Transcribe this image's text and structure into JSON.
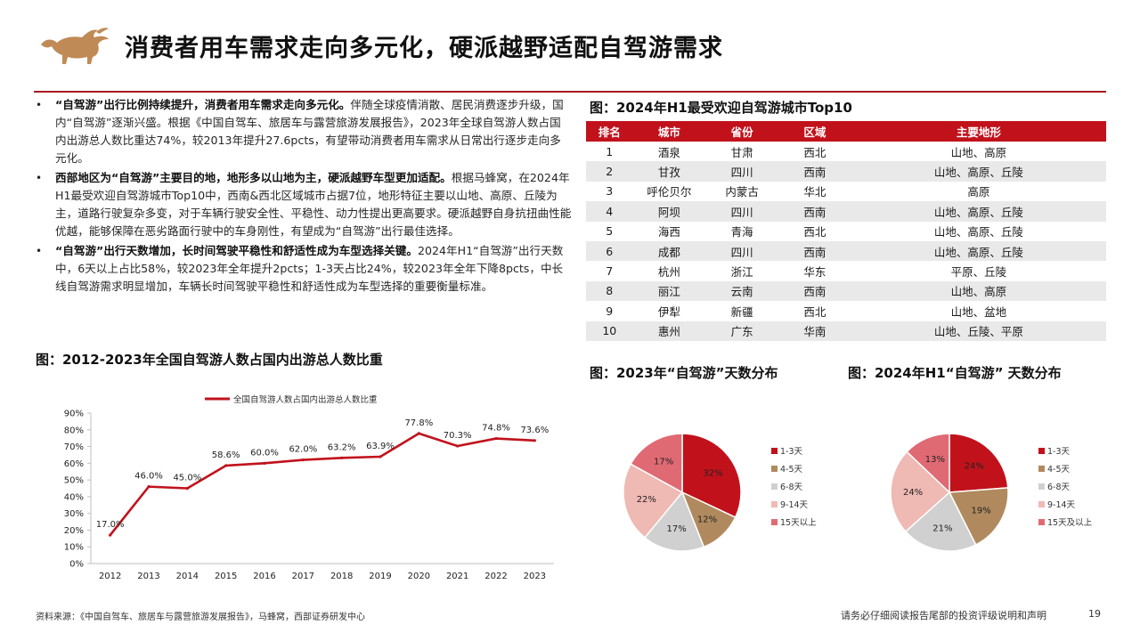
{
  "header": {
    "title": "消费者用车需求走向多元化，硬派越野适配自驾游需求"
  },
  "bullets": [
    {
      "bold": "“自驾游”出行比例持续提升，消费者用车需求走向多元化。",
      "text": "伴随全球疫情消散、居民消费逐步升级，国内“自驾游”逐渐兴盛。根据《中国自驾车、旅居车与露营旅游发展报告》，2023年全球自驾游人数占国内出游总人数比重达74%，较2013年提升27.6pcts，有望带动消费者用车需求从日常出行逐步走向多元化。"
    },
    {
      "bold": "西部地区为“自驾游”主要目的地，地形多以山地为主，硬派越野车型更加适配。",
      "text": "根据马蜂窝，在2024年H1最受欢迎自驾游城市Top10中，西南&西北区域城市占据7位，地形特征主要以山地、高原、丘陵为主，道路行驶复杂多变，对于车辆行驶安全性、平稳性、动力性提出更高要求。硬派越野自身抗扭曲性能优越，能够保障在恶劣路面行驶中的车身刚性，有望成为“自驾游”出行最佳选择。"
    },
    {
      "bold": "“自驾游”出行天数增加，长时间驾驶平稳性和舒适性成为车型选择关键。",
      "text": "2024年H1“自驾游”出行天数中，6天以上占比58%，较2023年全年提升2pcts；1-3天占比24%，较2023年全年下降8pcts，中长线自驾游需求明显增加，车辆长时间驾驶平稳性和舒适性成为车型选择的重要衡量标准。"
    }
  ],
  "line_section": {
    "title": "图：2012-2023年全国自驾游人数占国内出游总人数比重"
  },
  "table_section": {
    "title": "图：2024年H1最受欢迎自驾游城市Top10",
    "headers": [
      "排名",
      "城市",
      "省份",
      "区域",
      "主要地形"
    ],
    "rows": [
      [
        "1",
        "酒泉",
        "甘肃",
        "西北",
        "山地、高原"
      ],
      [
        "2",
        "甘孜",
        "四川",
        "西南",
        "山地、高原、丘陵"
      ],
      [
        "3",
        "呼伦贝尔",
        "内蒙古",
        "华北",
        "高原"
      ],
      [
        "4",
        "阿坝",
        "四川",
        "西南",
        "山地、高原、丘陵"
      ],
      [
        "5",
        "海西",
        "青海",
        "西北",
        "山地、高原、丘陵"
      ],
      [
        "6",
        "成都",
        "四川",
        "西南",
        "山地、高原、丘陵"
      ],
      [
        "7",
        "杭州",
        "浙江",
        "华东",
        "平原、丘陵"
      ],
      [
        "8",
        "丽江",
        "云南",
        "西南",
        "山地、高原"
      ],
      [
        "9",
        "伊犁",
        "新疆",
        "西北",
        "山地、盆地"
      ],
      [
        "10",
        "惠州",
        "广东",
        "华南",
        "山地、丘陵、平原"
      ]
    ]
  },
  "pie_2023_section": {
    "title": "图：2023年“自驾游”天数分布"
  },
  "pie_2024_section": {
    "title": "图：2024年H1“自驾游” 天数分布"
  },
  "chart_data": [
    {
      "type": "line",
      "title": "",
      "series": [
        {
          "name": "全国自驾游人数占国内出游总人数比重",
          "x": [
            "2012",
            "2013",
            "2014",
            "2015",
            "2016",
            "2017",
            "2018",
            "2019",
            "2020",
            "2021",
            "2022",
            "2023"
          ],
          "values": [
            17.0,
            46.0,
            45.0,
            58.6,
            60.0,
            62.0,
            63.2,
            63.9,
            77.8,
            70.3,
            74.8,
            73.6
          ],
          "labels": [
            "17.0%",
            "46.0%",
            "45.0%",
            "58.6%",
            "60.0%",
            "62.0%",
            "63.2%",
            "63.9%",
            "77.8%",
            "70.3%",
            "74.8%",
            "73.6%"
          ],
          "color": "#c1121c"
        }
      ],
      "ylim": [
        0,
        90
      ],
      "yticks": [
        "0%",
        "10%",
        "20%",
        "30%",
        "40%",
        "50%",
        "60%",
        "70%",
        "80%",
        "90%"
      ],
      "grid": false,
      "legend": "top"
    },
    {
      "type": "pie",
      "title": "",
      "slices": [
        {
          "label": "1-3天",
          "value": 32,
          "text": "32%",
          "color": "#c1121c"
        },
        {
          "label": "4-5天",
          "value": 12,
          "text": "12%",
          "color": "#b08a5e"
        },
        {
          "label": "6-8天",
          "value": 17,
          "text": "17%",
          "color": "#d0d0d0"
        },
        {
          "label": "9-14天",
          "value": 22,
          "text": "22%",
          "color": "#efb9b4"
        },
        {
          "label": "15天以上",
          "value": 17,
          "text": "17%",
          "color": "#e06a74"
        }
      ],
      "legend": "right"
    },
    {
      "type": "pie",
      "title": "",
      "slices": [
        {
          "label": "1-3天",
          "value": 24,
          "text": "24%",
          "color": "#c1121c"
        },
        {
          "label": "4-5天",
          "value": 19,
          "text": "19%",
          "color": "#b08a5e"
        },
        {
          "label": "6-8天",
          "value": 21,
          "text": "21%",
          "color": "#d0d0d0"
        },
        {
          "label": "9-14天",
          "value": 24,
          "text": "24%",
          "color": "#efb9b4"
        },
        {
          "label": "15天及以上",
          "value": 13,
          "text": "13%",
          "color": "#e06a74"
        }
      ],
      "legend": "right"
    }
  ],
  "footer": {
    "source": "资料来源：《中国自驾车、旅居车与露营旅游发展报告》，马蜂窝，西部证券研发中心",
    "disclaimer": "请务必仔细阅读报告尾部的投资评级说明和声明",
    "page": "19"
  }
}
